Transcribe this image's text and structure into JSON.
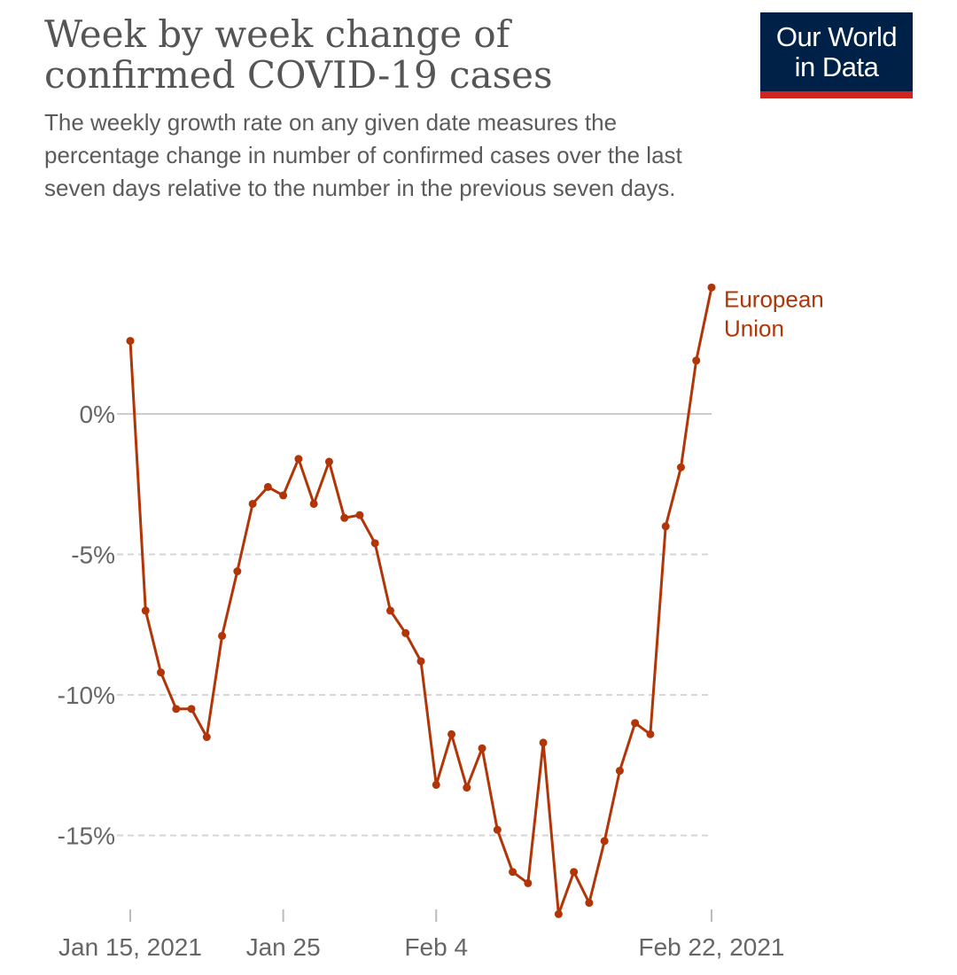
{
  "header": {
    "title": "Week by week change of confirmed COVID-19 cases",
    "subtitle": "The weekly growth rate on any given date measures the percentage change in number of confirmed cases over the last seven days relative to the number in the previous seven days."
  },
  "logo": {
    "line1": "Our World",
    "line2": "in Data"
  },
  "colors": {
    "series": "#b13507",
    "logo_bg": "#002147",
    "logo_accent": "#ce261e",
    "grid": "#d6d6d6"
  },
  "chart_data": {
    "type": "line",
    "title": "Week by week change of confirmed COVID-19 cases",
    "xlabel": "",
    "ylabel": "",
    "ylim": [
      -18,
      4
    ],
    "yticks": [
      0,
      -5,
      -10,
      -15
    ],
    "ytick_labels": [
      "0%",
      "-5%",
      "-10%",
      "-15%"
    ],
    "x_start": "2021-01-15",
    "xticks": [
      0,
      10,
      20,
      38
    ],
    "xtick_labels": [
      "Jan 15, 2021",
      "Jan 25",
      "Feb 4",
      "Feb 22, 2021"
    ],
    "series": [
      {
        "name": "European Union",
        "label_lines": [
          "European",
          "Union"
        ],
        "x": [
          0,
          1,
          2,
          3,
          4,
          5,
          6,
          7,
          8,
          9,
          10,
          11,
          12,
          13,
          14,
          15,
          16,
          17,
          18,
          19,
          20,
          21,
          22,
          23,
          24,
          25,
          26,
          27,
          28,
          29,
          30,
          31,
          32,
          33,
          34,
          35,
          36,
          37,
          38
        ],
        "values": [
          2.6,
          -7.0,
          -9.2,
          -10.5,
          -10.5,
          -11.5,
          -7.9,
          -5.6,
          -3.2,
          -2.6,
          -2.9,
          -1.6,
          -3.2,
          -1.7,
          -3.7,
          -3.6,
          -4.6,
          -7.0,
          -7.8,
          -8.8,
          -13.2,
          -11.4,
          -13.3,
          -11.9,
          -14.8,
          -16.3,
          -16.7,
          -11.7,
          -17.8,
          -16.3,
          -17.4,
          -15.2,
          -12.7,
          -11.0,
          -11.4,
          -4.0,
          -1.9,
          1.9,
          4.5
        ]
      }
    ]
  }
}
